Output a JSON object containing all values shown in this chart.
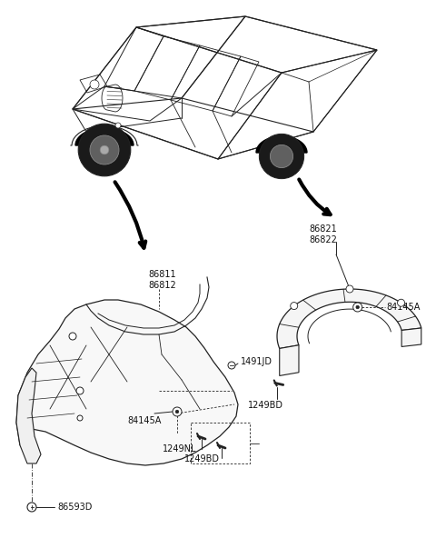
{
  "bg_color": "#ffffff",
  "line_color": "#222222",
  "text_color": "#111111",
  "font_size": 7.0,
  "labels": {
    "86811_86812": [
      "86811",
      "86812"
    ],
    "1491JD": "1491JD",
    "84145A_l": "84145A",
    "1249NL": "1249NL",
    "1249BD_l": "1249BD",
    "86593D": "86593D",
    "86821_86822": [
      "86821",
      "86822"
    ],
    "84145A_r": "84145A",
    "1249BD_r": "1249BD"
  }
}
